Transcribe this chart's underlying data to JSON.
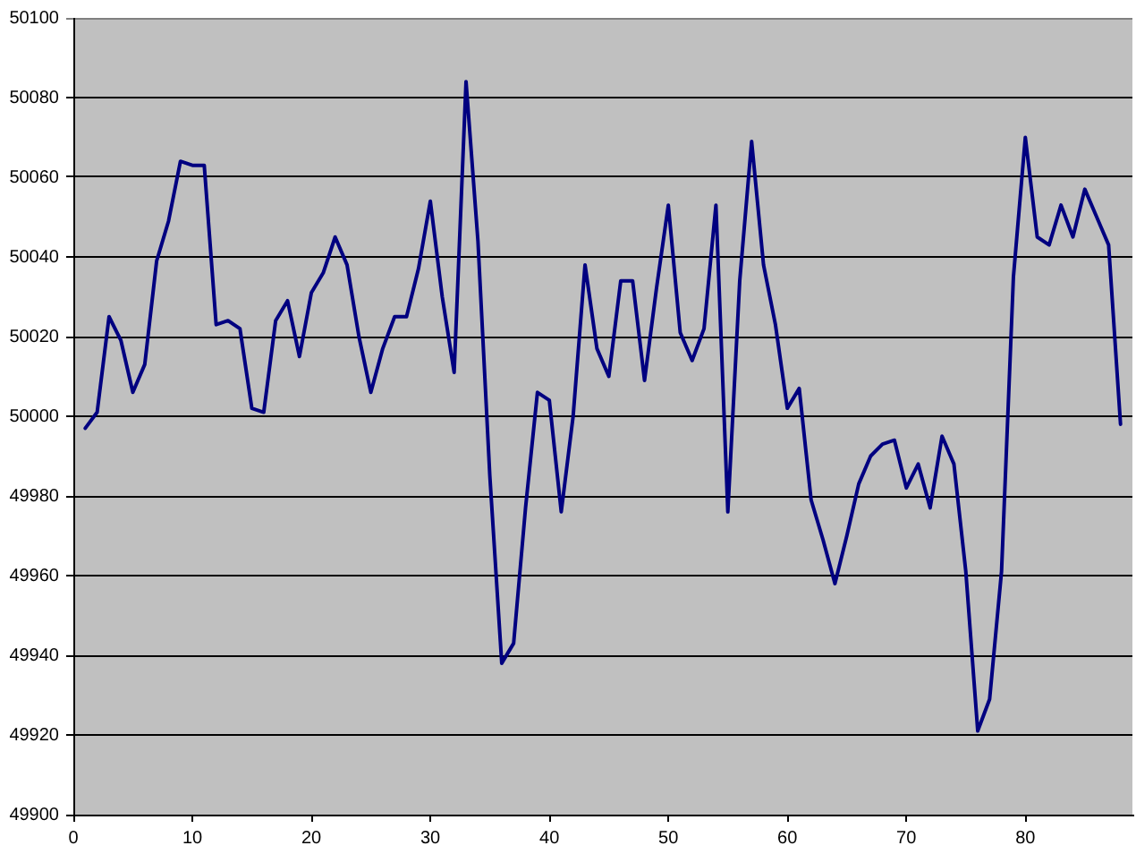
{
  "chart_data": {
    "type": "line",
    "x": [
      1,
      2,
      3,
      4,
      5,
      6,
      7,
      8,
      9,
      10,
      11,
      12,
      13,
      14,
      15,
      16,
      17,
      18,
      19,
      20,
      21,
      22,
      23,
      24,
      25,
      26,
      27,
      28,
      29,
      30,
      31,
      32,
      33,
      34,
      35,
      36,
      37,
      38,
      39,
      40,
      41,
      42,
      43,
      44,
      45,
      46,
      47,
      48,
      49,
      50,
      51,
      52,
      53,
      54,
      55,
      56,
      57,
      58,
      59,
      60,
      61,
      62,
      63,
      64,
      65,
      66,
      67,
      68,
      69,
      70,
      71,
      72,
      73,
      74,
      75,
      76,
      77,
      78,
      79,
      80,
      81,
      82,
      83,
      84,
      85,
      86,
      87,
      88
    ],
    "values": [
      49997,
      50001,
      50025,
      50019,
      50006,
      50013,
      50039,
      50049,
      50064,
      50063,
      50063,
      50023,
      50024,
      50022,
      50002,
      50001,
      50024,
      50029,
      50015,
      50031,
      50036,
      50045,
      50038,
      50020,
      50006,
      50017,
      50025,
      50025,
      50037,
      50054,
      50030,
      50011,
      50084,
      50044,
      49985,
      49938,
      49943,
      49977,
      50006,
      50004,
      49976,
      50000,
      50038,
      50017,
      50010,
      50034,
      50034,
      50009,
      50032,
      50053,
      50021,
      50014,
      50022,
      50053,
      49976,
      50034,
      50069,
      50038,
      50023,
      50002,
      50007,
      49979,
      49969,
      49958,
      49970,
      49983,
      49990,
      49993,
      49994,
      49982,
      49988,
      49977,
      49995,
      49988,
      49961,
      49921,
      49929,
      49961,
      50035,
      50070,
      50045,
      50043,
      50053,
      50045,
      50057,
      50050,
      50043,
      49998
    ],
    "color": "#000080",
    "xlim": [
      0,
      89
    ],
    "xticks": [
      0,
      10,
      20,
      30,
      40,
      50,
      60,
      70,
      80
    ],
    "ylim": [
      49900,
      50100
    ],
    "yticks": [
      49900,
      49920,
      49940,
      49960,
      49980,
      50000,
      50020,
      50040,
      50060,
      50080,
      50100
    ],
    "grid": "y",
    "marker": "none"
  }
}
